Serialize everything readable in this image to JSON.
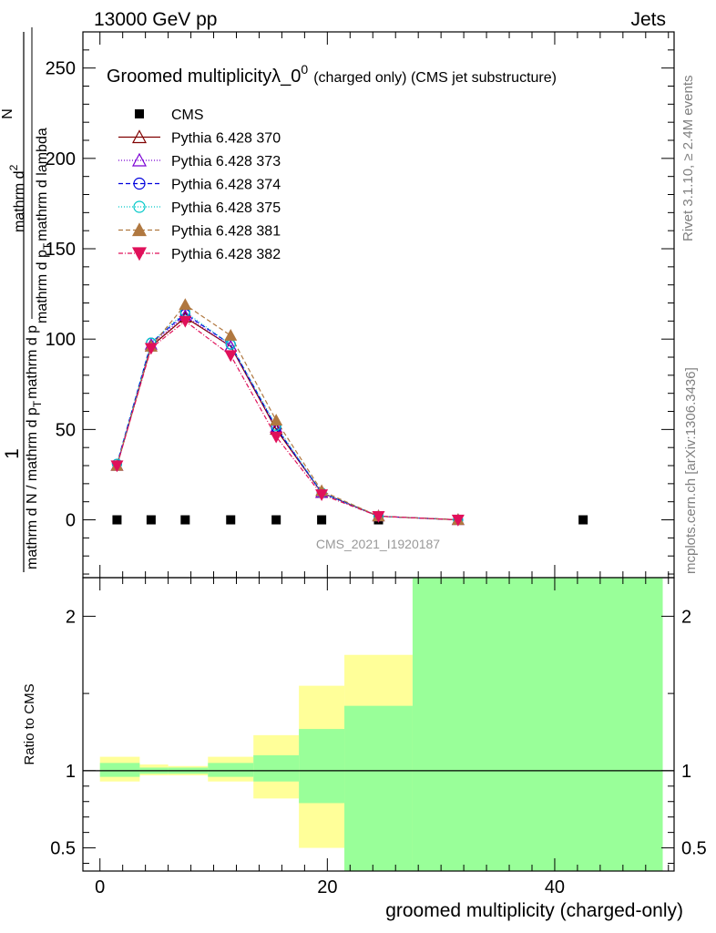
{
  "header": {
    "left": "13000 GeV pp",
    "right": "Jets"
  },
  "side_labels": {
    "rivet": "Rivet 3.1.10, ≥ 2.4M events",
    "mcplots": "mcplots.cern.ch [arXiv:1306.3436]"
  },
  "stamp": "CMS_2021_I1920187",
  "chart_data": [
    {
      "type": "scatter",
      "title": "Groomed multiplicityλ_0",
      "title_sup": "0",
      "title_suffix": "(charged only) (CMS jet substructure)",
      "ylabel_numerator": "1",
      "ylabel_den": "mathrm d N / mathrm d p",
      "ylabel_den_sub": "T",
      "ylabel_den_tail": "mathrm d p",
      "ylabel_num_main": "mathrm d",
      "ylabel_num_sup": "2",
      "ylabel_num_tail": "N",
      "ylabel_num_denom": "mathrm d p",
      "ylabel_num_denom_sub": "T",
      "ylabel_num_denom_tail": "mathrm d lambda",
      "xlim": [
        -1.5,
        50.5
      ],
      "ylim": [
        -32,
        270
      ],
      "y_ticks": [
        0,
        50,
        100,
        150,
        200,
        250
      ],
      "legend_position": "top-left",
      "series": [
        {
          "name": "CMS",
          "marker": "square",
          "color": "#000000",
          "x": [
            1.5,
            4.5,
            7.5,
            11.5,
            15.5,
            19.5,
            24.5,
            31.5,
            42.5
          ],
          "values": [
            0,
            0,
            0,
            0,
            0,
            0,
            0,
            0,
            0
          ]
        },
        {
          "name": "Pythia 6.428 370",
          "marker": "triangle-open",
          "color": "#800000",
          "dash": "",
          "x": [
            1.5,
            4.5,
            7.5,
            11.5,
            15.5,
            19.5,
            24.5,
            31.5
          ],
          "values": [
            30,
            96,
            112,
            96,
            50,
            15,
            2,
            0
          ]
        },
        {
          "name": "Pythia 6.428 373",
          "marker": "triangle-open",
          "color": "#7b00d4",
          "dash": "1,2",
          "x": [
            1.5,
            4.5,
            7.5,
            11.5,
            15.5,
            19.5,
            24.5,
            31.5
          ],
          "values": [
            30,
            97,
            113,
            96,
            51,
            15,
            2,
            0
          ]
        },
        {
          "name": "Pythia 6.428 374",
          "marker": "circle-open",
          "color": "#0000dd",
          "dash": "5,3",
          "x": [
            1.5,
            4.5,
            7.5,
            11.5,
            15.5,
            19.5,
            24.5,
            31.5
          ],
          "values": [
            31,
            98,
            114,
            97,
            51,
            15,
            2,
            0
          ]
        },
        {
          "name": "Pythia 6.428 375",
          "marker": "circle-open",
          "color": "#00c8c8",
          "dash": "1,2",
          "x": [
            1.5,
            4.5,
            7.5,
            11.5,
            15.5,
            19.5,
            24.5,
            31.5
          ],
          "values": [
            31,
            98,
            115,
            97,
            52,
            15,
            2,
            0
          ]
        },
        {
          "name": "Pythia 6.428 381",
          "marker": "triangle-filled",
          "color": "#b07840",
          "dash": "5,3",
          "x": [
            1.5,
            4.5,
            7.5,
            11.5,
            15.5,
            19.5,
            24.5,
            31.5
          ],
          "values": [
            30,
            96,
            119,
            102,
            55,
            16,
            2,
            0
          ]
        },
        {
          "name": "Pythia 6.428 382",
          "marker": "triangle-down-filled",
          "color": "#e0105a",
          "dash": "5,2,1,2",
          "x": [
            1.5,
            4.5,
            7.5,
            11.5,
            15.5,
            19.5,
            24.5,
            31.5
          ],
          "values": [
            30,
            95,
            110,
            91,
            46,
            14,
            2,
            0
          ]
        }
      ]
    },
    {
      "type": "area",
      "ylabel": "Ratio to CMS",
      "xlabel": "groomed multiplicity (charged-only)",
      "xlim": [
        -1.5,
        50.5
      ],
      "ylim": [
        0.35,
        2.25
      ],
      "y_ticks": [
        0.5,
        1,
        2
      ],
      "x_ticks": [
        0,
        20,
        40
      ],
      "bins": [
        {
          "x_low": 0,
          "x_high": 3.5,
          "inner": [
            0.96,
            1.05
          ],
          "outer": [
            0.93,
            1.09
          ]
        },
        {
          "x_low": 3.5,
          "x_high": 6,
          "inner": [
            0.98,
            1.02
          ],
          "outer": [
            0.97,
            1.04
          ]
        },
        {
          "x_low": 6,
          "x_high": 9.5,
          "inner": [
            0.98,
            1.02
          ],
          "outer": [
            0.97,
            1.03
          ]
        },
        {
          "x_low": 9.5,
          "x_high": 13.5,
          "inner": [
            0.96,
            1.05
          ],
          "outer": [
            0.93,
            1.09
          ]
        },
        {
          "x_low": 13.5,
          "x_high": 17.5,
          "inner": [
            0.93,
            1.1
          ],
          "outer": [
            0.82,
            1.23
          ]
        },
        {
          "x_low": 17.5,
          "x_high": 21.5,
          "inner": [
            0.79,
            1.27
          ],
          "outer": [
            0.5,
            1.55
          ]
        },
        {
          "x_low": 21.5,
          "x_high": 27.5,
          "inner": [
            0.35,
            1.42
          ],
          "outer": [
            0.35,
            1.75
          ]
        },
        {
          "x_low": 27.5,
          "x_high": 49.5,
          "inner": [
            0.35,
            2.25
          ],
          "outer": [
            0.35,
            2.25
          ]
        }
      ]
    }
  ]
}
